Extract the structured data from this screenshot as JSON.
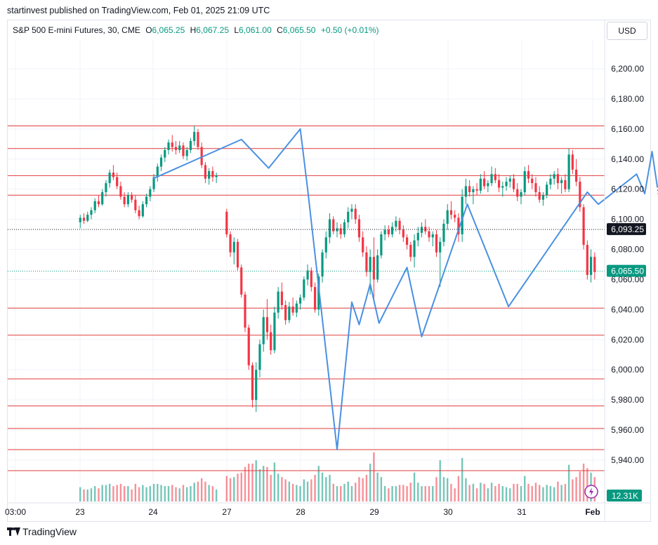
{
  "header": {
    "publisher": "startinvest published on TradingView.com, Feb 01, 2025 21:09 UTC"
  },
  "legend": {
    "symbol": "S&P 500 E-mini Futures, 30, CME",
    "o_label": "O",
    "o_value": "6,065.25",
    "h_label": "H",
    "h_value": "6,067.25",
    "l_label": "L",
    "l_value": "6,061.00",
    "c_label": "C",
    "c_value": "6,065.50",
    "change": "+0.50 (+0.01%)"
  },
  "currency_button": "USD",
  "footer": {
    "brand": "TradingView"
  },
  "colors": {
    "up": "#089981",
    "down": "#f23645",
    "zigzag": "#4a90e2",
    "level": "#e03b3b",
    "grid": "#f0f3fa"
  },
  "chart_data": {
    "type": "candlestick",
    "ylim": [
      5918,
      6215
    ],
    "y_ticks": [
      5940,
      5960,
      5980,
      6000,
      6020,
      6040,
      6060,
      6080,
      6100,
      6120,
      6140,
      6160,
      6180,
      6200
    ],
    "y_tick_labels": [
      "5,940.00",
      "5,960.00",
      "5,980.00",
      "6,000.00",
      "6,020.00",
      "6,040.00",
      "6,060.00",
      "6,080.00",
      "6,100.00",
      "6,120.00",
      "6,140.00",
      "6,160.00",
      "6,180.00",
      "6,200.00"
    ],
    "x_labels": [
      "03:00",
      "23",
      "24",
      "27",
      "28",
      "29",
      "30",
      "31",
      "Feb"
    ],
    "horizontal_levels": [
      6162,
      6147,
      6129,
      6116,
      6041,
      6023,
      5994,
      5976,
      5961,
      5947,
      5933
    ],
    "dotted_level": 6093.25,
    "dotted_level_label": "6,093.25",
    "last_price": 6065.5,
    "last_price_label": "6,065.50",
    "volume_label": "12.31K",
    "zigzag": [
      {
        "x": 0.0,
        "y": 6127
      },
      {
        "x": 1.2,
        "y": 6153
      },
      {
        "x": 1.57,
        "y": 6134
      },
      {
        "x": 2.0,
        "y": 6160
      },
      {
        "x": 2.1,
        "y": 6120
      },
      {
        "x": 2.5,
        "y": 5947
      },
      {
        "x": 2.7,
        "y": 6045
      },
      {
        "x": 2.8,
        "y": 6030
      },
      {
        "x": 2.95,
        "y": 6057
      },
      {
        "x": 3.07,
        "y": 6031
      },
      {
        "x": 3.45,
        "y": 6068
      },
      {
        "x": 3.65,
        "y": 6022
      },
      {
        "x": 4.27,
        "y": 6110
      },
      {
        "x": 4.83,
        "y": 6042
      },
      {
        "x": 5.9,
        "y": 6118
      },
      {
        "x": 6.05,
        "y": 6110
      },
      {
        "x": 6.57,
        "y": 6130
      },
      {
        "x": 6.68,
        "y": 6117
      },
      {
        "x": 6.78,
        "y": 6145
      },
      {
        "x": 6.85,
        "y": 6122
      }
    ],
    "candles": [
      {
        "x": -0.99,
        "o": 6098,
        "h": 6103,
        "l": 6094,
        "c": 6101
      },
      {
        "x": -0.94,
        "o": 6101,
        "h": 6104,
        "l": 6097,
        "c": 6099
      },
      {
        "x": -0.89,
        "o": 6099,
        "h": 6105,
        "l": 6098,
        "c": 6103
      },
      {
        "x": -0.84,
        "o": 6103,
        "h": 6108,
        "l": 6100,
        "c": 6106
      },
      {
        "x": -0.79,
        "o": 6106,
        "h": 6114,
        "l": 6104,
        "c": 6112
      },
      {
        "x": -0.74,
        "o": 6112,
        "h": 6116,
        "l": 6108,
        "c": 6110
      },
      {
        "x": -0.69,
        "o": 6110,
        "h": 6120,
        "l": 6109,
        "c": 6118
      },
      {
        "x": -0.64,
        "o": 6118,
        "h": 6126,
        "l": 6115,
        "c": 6124
      },
      {
        "x": -0.59,
        "o": 6124,
        "h": 6133,
        "l": 6121,
        "c": 6131
      },
      {
        "x": -0.54,
        "o": 6131,
        "h": 6136,
        "l": 6126,
        "c": 6128
      },
      {
        "x": -0.49,
        "o": 6128,
        "h": 6131,
        "l": 6120,
        "c": 6122
      },
      {
        "x": -0.44,
        "o": 6122,
        "h": 6125,
        "l": 6113,
        "c": 6115
      },
      {
        "x": -0.39,
        "o": 6115,
        "h": 6118,
        "l": 6108,
        "c": 6110
      },
      {
        "x": -0.34,
        "o": 6110,
        "h": 6118,
        "l": 6108,
        "c": 6116
      },
      {
        "x": -0.29,
        "o": 6116,
        "h": 6118,
        "l": 6111,
        "c": 6113
      },
      {
        "x": -0.24,
        "o": 6113,
        "h": 6116,
        "l": 6104,
        "c": 6106
      },
      {
        "x": -0.19,
        "o": 6106,
        "h": 6109,
        "l": 6100,
        "c": 6102
      },
      {
        "x": -0.14,
        "o": 6102,
        "h": 6112,
        "l": 6101,
        "c": 6110
      },
      {
        "x": -0.09,
        "o": 6110,
        "h": 6117,
        "l": 6108,
        "c": 6115
      },
      {
        "x": -0.04,
        "o": 6115,
        "h": 6122,
        "l": 6112,
        "c": 6120
      },
      {
        "x": 0.01,
        "o": 6120,
        "h": 6130,
        "l": 6118,
        "c": 6128
      },
      {
        "x": 0.06,
        "o": 6128,
        "h": 6137,
        "l": 6125,
        "c": 6135
      },
      {
        "x": 0.11,
        "o": 6135,
        "h": 6143,
        "l": 6132,
        "c": 6141
      },
      {
        "x": 0.16,
        "o": 6141,
        "h": 6148,
        "l": 6138,
        "c": 6146
      },
      {
        "x": 0.21,
        "o": 6146,
        "h": 6153,
        "l": 6143,
        "c": 6151
      },
      {
        "x": 0.26,
        "o": 6151,
        "h": 6156,
        "l": 6145,
        "c": 6148
      },
      {
        "x": 0.31,
        "o": 6148,
        "h": 6152,
        "l": 6143,
        "c": 6146
      },
      {
        "x": 0.36,
        "o": 6146,
        "h": 6152,
        "l": 6144,
        "c": 6149
      },
      {
        "x": 0.41,
        "o": 6149,
        "h": 6151,
        "l": 6140,
        "c": 6142
      },
      {
        "x": 0.46,
        "o": 6142,
        "h": 6148,
        "l": 6139,
        "c": 6146
      },
      {
        "x": 0.51,
        "o": 6146,
        "h": 6154,
        "l": 6144,
        "c": 6152
      },
      {
        "x": 0.56,
        "o": 6152,
        "h": 6162,
        "l": 6149,
        "c": 6158
      },
      {
        "x": 0.61,
        "o": 6158,
        "h": 6160,
        "l": 6146,
        "c": 6148
      },
      {
        "x": 0.66,
        "o": 6148,
        "h": 6151,
        "l": 6134,
        "c": 6136
      },
      {
        "x": 0.71,
        "o": 6136,
        "h": 6138,
        "l": 6124,
        "c": 6127
      },
      {
        "x": 0.76,
        "o": 6127,
        "h": 6134,
        "l": 6123,
        "c": 6132
      },
      {
        "x": 0.81,
        "o": 6132,
        "h": 6135,
        "l": 6125,
        "c": 6128
      },
      {
        "x": 0.86,
        "o": 6128,
        "h": 6131,
        "l": 6124,
        "c": 6129
      },
      {
        "x": 1.0,
        "o": 6105,
        "h": 6107,
        "l": 6088,
        "c": 6090
      },
      {
        "x": 1.05,
        "o": 6090,
        "h": 6092,
        "l": 6075,
        "c": 6078
      },
      {
        "x": 1.1,
        "o": 6078,
        "h": 6088,
        "l": 6070,
        "c": 6085
      },
      {
        "x": 1.15,
        "o": 6085,
        "h": 6087,
        "l": 6066,
        "c": 6068
      },
      {
        "x": 1.2,
        "o": 6068,
        "h": 6070,
        "l": 6048,
        "c": 6050
      },
      {
        "x": 1.25,
        "o": 6050,
        "h": 6052,
        "l": 6025,
        "c": 6028
      },
      {
        "x": 1.3,
        "o": 6028,
        "h": 6030,
        "l": 6000,
        "c": 6003
      },
      {
        "x": 1.35,
        "o": 6003,
        "h": 6005,
        "l": 5975,
        "c": 5980
      },
      {
        "x": 1.4,
        "o": 5980,
        "h": 6005,
        "l": 5972,
        "c": 6000
      },
      {
        "x": 1.45,
        "o": 6000,
        "h": 6020,
        "l": 5995,
        "c": 6017
      },
      {
        "x": 1.5,
        "o": 6017,
        "h": 6040,
        "l": 6012,
        "c": 6035
      },
      {
        "x": 1.55,
        "o": 6035,
        "h": 6047,
        "l": 6020,
        "c": 6025
      },
      {
        "x": 1.6,
        "o": 6025,
        "h": 6030,
        "l": 6010,
        "c": 6013
      },
      {
        "x": 1.65,
        "o": 6013,
        "h": 6042,
        "l": 6011,
        "c": 6038
      },
      {
        "x": 1.7,
        "o": 6038,
        "h": 6055,
        "l": 6034,
        "c": 6052
      },
      {
        "x": 1.75,
        "o": 6052,
        "h": 6058,
        "l": 6040,
        "c": 6043
      },
      {
        "x": 1.8,
        "o": 6043,
        "h": 6046,
        "l": 6030,
        "c": 6033
      },
      {
        "x": 1.85,
        "o": 6033,
        "h": 6045,
        "l": 6031,
        "c": 6042
      },
      {
        "x": 1.9,
        "o": 6042,
        "h": 6048,
        "l": 6036,
        "c": 6038
      },
      {
        "x": 1.95,
        "o": 6038,
        "h": 6046,
        "l": 6035,
        "c": 6044
      },
      {
        "x": 2.0,
        "o": 6044,
        "h": 6050,
        "l": 6040,
        "c": 6048
      },
      {
        "x": 2.05,
        "o": 6048,
        "h": 6062,
        "l": 6046,
        "c": 6060
      },
      {
        "x": 2.1,
        "o": 6060,
        "h": 6070,
        "l": 6056,
        "c": 6066
      },
      {
        "x": 2.15,
        "o": 6066,
        "h": 6068,
        "l": 6052,
        "c": 6055
      },
      {
        "x": 2.2,
        "o": 6055,
        "h": 6058,
        "l": 6038,
        "c": 6040
      },
      {
        "x": 2.25,
        "o": 6040,
        "h": 6064,
        "l": 6036,
        "c": 6062
      },
      {
        "x": 2.3,
        "o": 6062,
        "h": 6080,
        "l": 6058,
        "c": 6078
      },
      {
        "x": 2.35,
        "o": 6078,
        "h": 6092,
        "l": 6074,
        "c": 6088
      },
      {
        "x": 2.4,
        "o": 6088,
        "h": 6104,
        "l": 6084,
        "c": 6100
      },
      {
        "x": 2.45,
        "o": 6100,
        "h": 6102,
        "l": 6090,
        "c": 6092
      },
      {
        "x": 2.5,
        "o": 6092,
        "h": 6098,
        "l": 6088,
        "c": 6094
      },
      {
        "x": 2.55,
        "o": 6094,
        "h": 6097,
        "l": 6087,
        "c": 6090
      },
      {
        "x": 2.6,
        "o": 6090,
        "h": 6100,
        "l": 6088,
        "c": 6098
      },
      {
        "x": 2.65,
        "o": 6098,
        "h": 6108,
        "l": 6094,
        "c": 6105
      },
      {
        "x": 2.7,
        "o": 6105,
        "h": 6110,
        "l": 6100,
        "c": 6107
      },
      {
        "x": 2.75,
        "o": 6107,
        "h": 6110,
        "l": 6097,
        "c": 6100
      },
      {
        "x": 2.8,
        "o": 6100,
        "h": 6103,
        "l": 6085,
        "c": 6088
      },
      {
        "x": 2.85,
        "o": 6088,
        "h": 6092,
        "l": 6075,
        "c": 6078
      },
      {
        "x": 2.9,
        "o": 6078,
        "h": 6082,
        "l": 6062,
        "c": 6065
      },
      {
        "x": 2.95,
        "o": 6065,
        "h": 6080,
        "l": 6050,
        "c": 6075
      },
      {
        "x": 3.0,
        "o": 6075,
        "h": 6088,
        "l": 6045,
        "c": 6060
      },
      {
        "x": 3.05,
        "o": 6060,
        "h": 6080,
        "l": 6058,
        "c": 6076
      },
      {
        "x": 3.1,
        "o": 6076,
        "h": 6092,
        "l": 6074,
        "c": 6090
      },
      {
        "x": 3.15,
        "o": 6090,
        "h": 6096,
        "l": 6086,
        "c": 6093
      },
      {
        "x": 3.2,
        "o": 6093,
        "h": 6096,
        "l": 6088,
        "c": 6090
      },
      {
        "x": 3.25,
        "o": 6090,
        "h": 6098,
        "l": 6088,
        "c": 6095
      },
      {
        "x": 3.3,
        "o": 6095,
        "h": 6102,
        "l": 6092,
        "c": 6099
      },
      {
        "x": 3.35,
        "o": 6099,
        "h": 6101,
        "l": 6090,
        "c": 6093
      },
      {
        "x": 3.4,
        "o": 6093,
        "h": 6096,
        "l": 6085,
        "c": 6088
      },
      {
        "x": 3.45,
        "o": 6088,
        "h": 6090,
        "l": 6080,
        "c": 6083
      },
      {
        "x": 3.5,
        "o": 6083,
        "h": 6085,
        "l": 6072,
        "c": 6075
      },
      {
        "x": 3.55,
        "o": 6075,
        "h": 6090,
        "l": 6068,
        "c": 6086
      },
      {
        "x": 3.6,
        "o": 6086,
        "h": 6095,
        "l": 6082,
        "c": 6091
      },
      {
        "x": 3.65,
        "o": 6091,
        "h": 6098,
        "l": 6088,
        "c": 6095
      },
      {
        "x": 3.7,
        "o": 6095,
        "h": 6100,
        "l": 6090,
        "c": 6092
      },
      {
        "x": 3.75,
        "o": 6092,
        "h": 6095,
        "l": 6085,
        "c": 6088
      },
      {
        "x": 3.8,
        "o": 6088,
        "h": 6092,
        "l": 6082,
        "c": 6090
      },
      {
        "x": 3.85,
        "o": 6090,
        "h": 6093,
        "l": 6075,
        "c": 6078
      },
      {
        "x": 3.9,
        "o": 6078,
        "h": 6088,
        "l": 6055,
        "c": 6085
      },
      {
        "x": 3.95,
        "o": 6085,
        "h": 6100,
        "l": 6082,
        "c": 6097
      },
      {
        "x": 4.0,
        "o": 6097,
        "h": 6110,
        "l": 6093,
        "c": 6106
      },
      {
        "x": 4.05,
        "o": 6106,
        "h": 6112,
        "l": 6100,
        "c": 6103
      },
      {
        "x": 4.1,
        "o": 6103,
        "h": 6106,
        "l": 6098,
        "c": 6101
      },
      {
        "x": 4.15,
        "o": 6101,
        "h": 6104,
        "l": 6085,
        "c": 6090
      },
      {
        "x": 4.2,
        "o": 6090,
        "h": 6120,
        "l": 6085,
        "c": 6115
      },
      {
        "x": 4.25,
        "o": 6115,
        "h": 6127,
        "l": 6110,
        "c": 6122
      },
      {
        "x": 4.3,
        "o": 6122,
        "h": 6126,
        "l": 6115,
        "c": 6118
      },
      {
        "x": 4.35,
        "o": 6118,
        "h": 6122,
        "l": 6110,
        "c": 6120
      },
      {
        "x": 4.4,
        "o": 6120,
        "h": 6124,
        "l": 6116,
        "c": 6119
      },
      {
        "x": 4.45,
        "o": 6119,
        "h": 6130,
        "l": 6117,
        "c": 6127
      },
      {
        "x": 4.5,
        "o": 6127,
        "h": 6132,
        "l": 6120,
        "c": 6122
      },
      {
        "x": 4.55,
        "o": 6122,
        "h": 6126,
        "l": 6118,
        "c": 6124
      },
      {
        "x": 4.6,
        "o": 6124,
        "h": 6135,
        "l": 6122,
        "c": 6130
      },
      {
        "x": 4.65,
        "o": 6130,
        "h": 6134,
        "l": 6124,
        "c": 6126
      },
      {
        "x": 4.7,
        "o": 6126,
        "h": 6130,
        "l": 6118,
        "c": 6121
      },
      {
        "x": 4.75,
        "o": 6121,
        "h": 6125,
        "l": 6115,
        "c": 6122
      },
      {
        "x": 4.8,
        "o": 6122,
        "h": 6128,
        "l": 6119,
        "c": 6125
      },
      {
        "x": 4.85,
        "o": 6125,
        "h": 6129,
        "l": 6121,
        "c": 6127
      },
      {
        "x": 4.9,
        "o": 6127,
        "h": 6130,
        "l": 6118,
        "c": 6120
      },
      {
        "x": 4.95,
        "o": 6120,
        "h": 6124,
        "l": 6112,
        "c": 6115
      },
      {
        "x": 5.0,
        "o": 6115,
        "h": 6120,
        "l": 6110,
        "c": 6118
      },
      {
        "x": 5.05,
        "o": 6118,
        "h": 6135,
        "l": 6116,
        "c": 6132
      },
      {
        "x": 5.1,
        "o": 6132,
        "h": 6136,
        "l": 6124,
        "c": 6127
      },
      {
        "x": 5.15,
        "o": 6127,
        "h": 6130,
        "l": 6120,
        "c": 6124
      },
      {
        "x": 5.2,
        "o": 6124,
        "h": 6128,
        "l": 6115,
        "c": 6118
      },
      {
        "x": 5.25,
        "o": 6118,
        "h": 6122,
        "l": 6111,
        "c": 6113
      },
      {
        "x": 5.3,
        "o": 6113,
        "h": 6118,
        "l": 6109,
        "c": 6116
      },
      {
        "x": 5.35,
        "o": 6116,
        "h": 6125,
        "l": 6114,
        "c": 6123
      },
      {
        "x": 5.4,
        "o": 6123,
        "h": 6130,
        "l": 6120,
        "c": 6127
      },
      {
        "x": 5.45,
        "o": 6127,
        "h": 6132,
        "l": 6123,
        "c": 6130
      },
      {
        "x": 5.5,
        "o": 6130,
        "h": 6134,
        "l": 6120,
        "c": 6124
      },
      {
        "x": 5.55,
        "o": 6124,
        "h": 6128,
        "l": 6117,
        "c": 6126
      },
      {
        "x": 5.6,
        "o": 6126,
        "h": 6130,
        "l": 6118,
        "c": 6120
      },
      {
        "x": 5.65,
        "o": 6120,
        "h": 6147,
        "l": 6118,
        "c": 6143
      },
      {
        "x": 5.7,
        "o": 6143,
        "h": 6146,
        "l": 6130,
        "c": 6133
      },
      {
        "x": 5.75,
        "o": 6133,
        "h": 6140,
        "l": 6122,
        "c": 6125
      },
      {
        "x": 5.8,
        "o": 6125,
        "h": 6128,
        "l": 6105,
        "c": 6108
      },
      {
        "x": 5.85,
        "o": 6108,
        "h": 6110,
        "l": 6080,
        "c": 6083
      },
      {
        "x": 5.9,
        "o": 6083,
        "h": 6086,
        "l": 6060,
        "c": 6063
      },
      {
        "x": 5.95,
        "o": 6063,
        "h": 6080,
        "l": 6058,
        "c": 6075
      },
      {
        "x": 6.0,
        "o": 6075,
        "h": 6078,
        "l": 6060,
        "c": 6065
      }
    ]
  }
}
